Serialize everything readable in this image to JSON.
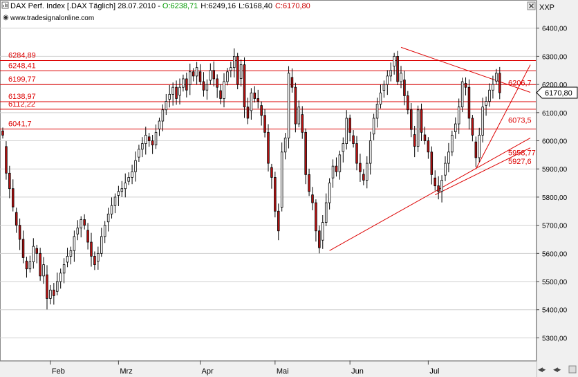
{
  "header": {
    "title": "DAX Perf. Index [.DAX  Täglich] 28.07.2010 - ",
    "open": "O:6238,71",
    "high": "H:6249,16",
    "low": "L:6168,40",
    "close": "C:6170,80",
    "source": "www.tradesignalonline.com",
    "symbol": "XXP"
  },
  "colors": {
    "open": "#009900",
    "close": "#cc0000",
    "levels": "#dd0000",
    "candle": "#000000",
    "bearish": "#bb1111",
    "grid": "#cfcfcf",
    "axis_panel": "#f0f0f0"
  },
  "chart_data": {
    "type": "candlestick",
    "title": "DAX Perf. Index [.DAX  Täglich] 28.07.2010",
    "xlabel": "",
    "ylabel": "",
    "ylim": [
      5220,
      6500
    ],
    "y_ticks": [
      "6400,00",
      "6300,00",
      "6200,00",
      "6100,00",
      "6000,00",
      "5900,00",
      "5800,00",
      "5700,00",
      "5600,00",
      "5500,00",
      "5400,00",
      "5300,00"
    ],
    "y_tick_values": [
      6400,
      6300,
      6200,
      6100,
      6000,
      5900,
      5800,
      5700,
      5600,
      5500,
      5400,
      5300
    ],
    "x_labels": [
      "Feb",
      "Mrz",
      "Apr",
      "Mai",
      "Jun",
      "Jul"
    ],
    "x_label_index": [
      14,
      34,
      58,
      80,
      102,
      125
    ],
    "grid": "horizontal",
    "last_price": "6170,80",
    "last_value": 6170.8,
    "levels": [
      {
        "label": "6284,89",
        "value": 6284.89
      },
      {
        "label": "6248,41",
        "value": 6248.41
      },
      {
        "label": "6199,77",
        "value": 6199.77
      },
      {
        "label": "6138,97",
        "value": 6138.97
      },
      {
        "label": "6112,22",
        "value": 6112.22
      },
      {
        "label": "6041,7",
        "value": 6041.7
      }
    ],
    "line_labels": [
      {
        "label": "6206,7",
        "value": 6206.7
      },
      {
        "label": "6073,5",
        "value": 6073.5
      },
      {
        "label": "5958,77",
        "value": 5958.77
      },
      {
        "label": "5927,6",
        "value": 5927.6
      }
    ],
    "trendlines": [
      {
        "from": [
          117,
          6332
        ],
        "to": [
          155,
          6172
        ]
      },
      {
        "from": [
          96,
          5610
        ],
        "to": [
          155,
          6010
        ]
      },
      {
        "from": [
          127,
          5808
        ],
        "to": [
          155,
          5975
        ]
      },
      {
        "from": [
          139,
          5900
        ],
        "to": [
          155,
          6270
        ]
      }
    ],
    "closes": [
      6020,
      5885,
      5830,
      5765,
      5700,
      5650,
      5585,
      5545,
      5570,
      5625,
      5600,
      5520,
      5560,
      5440,
      5470,
      5450,
      5500,
      5530,
      5560,
      5590,
      5610,
      5660,
      5690,
      5720,
      5700,
      5640,
      5590,
      5560,
      5600,
      5660,
      5700,
      5740,
      5770,
      5800,
      5820,
      5830,
      5850,
      5870,
      5890,
      5930,
      5970,
      5990,
      6020,
      6000,
      5985,
      6030,
      6070,
      6110,
      6140,
      6165,
      6190,
      6150,
      6190,
      6220,
      6180,
      6245,
      6230,
      6260,
      6210,
      6180,
      6200,
      6250,
      6220,
      6190,
      6150,
      6210,
      6245,
      6260,
      6300,
      6200,
      6270,
      6120,
      6080,
      6170,
      6150,
      6140,
      6090,
      6030,
      5920,
      5870,
      5750,
      5680,
      5960,
      6010,
      6240,
      6190,
      6060,
      6120,
      6030,
      5880,
      5820,
      5780,
      5680,
      5620,
      5710,
      5780,
      5850,
      5910,
      5890,
      5950,
      5990,
      6080,
      6030,
      5990,
      5920,
      5890,
      5860,
      5920,
      6000,
      6080,
      6130,
      6170,
      6200,
      6230,
      6250,
      6300,
      6210,
      6240,
      6160,
      6110,
      6040,
      5980,
      6110,
      6030,
      6000,
      5960,
      5880,
      5840,
      5820,
      5860,
      5920,
      5960,
      6020,
      6060,
      6120,
      6210,
      6190,
      6080,
      6020,
      5940,
      6020,
      6120,
      6140,
      6180,
      6200,
      6240,
      6170.8
    ]
  }
}
